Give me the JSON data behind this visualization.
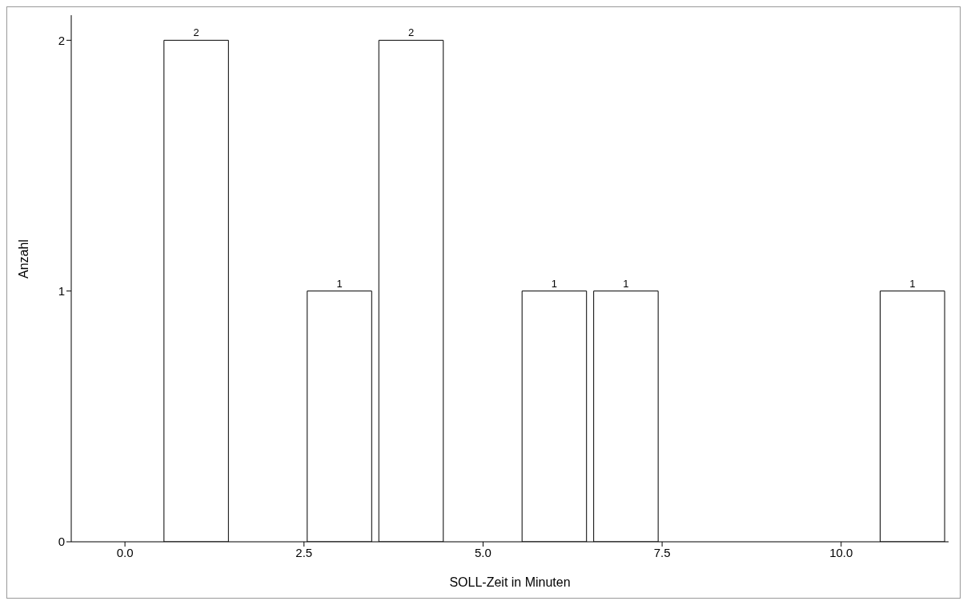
{
  "chart_data": {
    "type": "histogram",
    "xlabel": "SOLL-Zeit in Minuten",
    "ylabel": "Anzahl",
    "bins": [
      0.5,
      1.5,
      2.5,
      3.5,
      4.5,
      5.5,
      6.5,
      7.5,
      8.5,
      9.5,
      10.5,
      11.5
    ],
    "values": [
      2,
      0,
      1,
      2,
      0,
      1,
      1,
      0,
      0,
      0,
      1
    ],
    "value_labels": [
      "2",
      null,
      "1",
      "2",
      null,
      "1",
      "1",
      null,
      null,
      null,
      "1"
    ],
    "color": "#ffffff",
    "xlim": [
      -0.75,
      11.5
    ],
    "xticks": [
      {
        "value": 0,
        "label": "0.0"
      },
      {
        "value": 2.5,
        "label": "2.5"
      },
      {
        "value": 5,
        "label": "5.0"
      },
      {
        "value": 7.5,
        "label": "7.5"
      },
      {
        "value": 10,
        "label": "10.0"
      }
    ],
    "ylim": [
      0,
      2.1
    ],
    "yticks": [
      0,
      1,
      2
    ],
    "grid": false,
    "legend": false
  }
}
